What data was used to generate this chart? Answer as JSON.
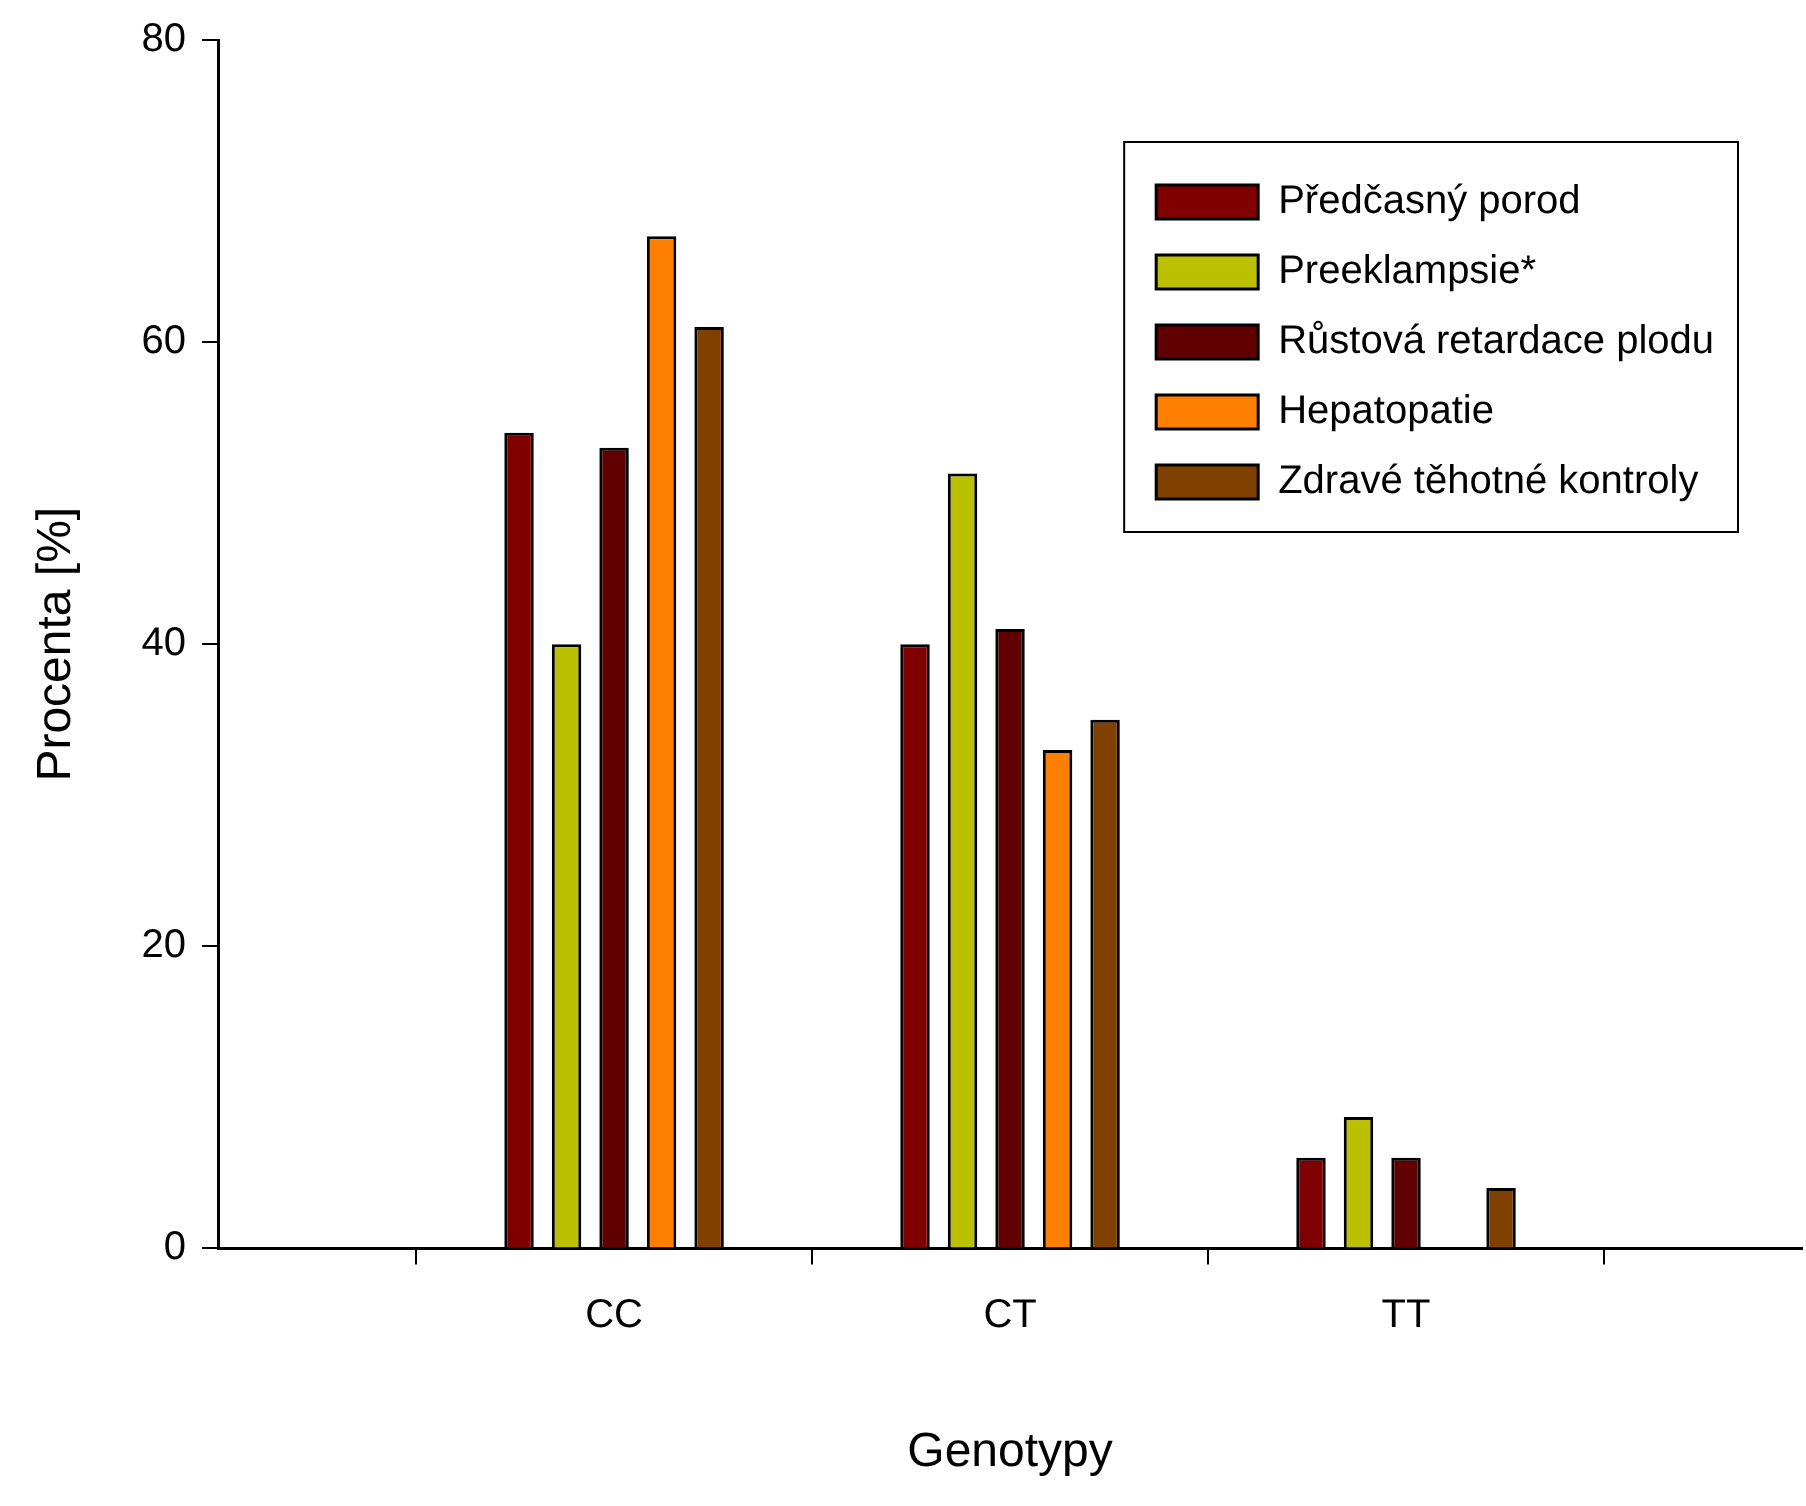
{
  "chart_data": {
    "type": "bar",
    "xlabel": "Genotypy",
    "ylabel": "Procenta [%]",
    "categories": [
      "CC",
      "CT",
      "TT"
    ],
    "series": [
      {
        "name": "Předčasný porod",
        "color": "#800000",
        "values": [
          54,
          40,
          6
        ]
      },
      {
        "name": "Preeklampsie*",
        "color": "#bbc000",
        "values": [
          40,
          51.3,
          8.7
        ]
      },
      {
        "name": "Růstová retardace plodu",
        "color": "#600000",
        "values": [
          53,
          41,
          6
        ]
      },
      {
        "name": "Hepatopatie",
        "color": "#ff8000",
        "values": [
          67,
          33,
          0
        ]
      },
      {
        "name": "Zdravé těhotné kontroly",
        "color": "#804000",
        "values": [
          61,
          35,
          4
        ]
      }
    ],
    "ylim": [
      0,
      80
    ],
    "yticks": [
      0,
      20,
      40,
      60,
      80
    ],
    "grid": false,
    "legend": "top right"
  }
}
